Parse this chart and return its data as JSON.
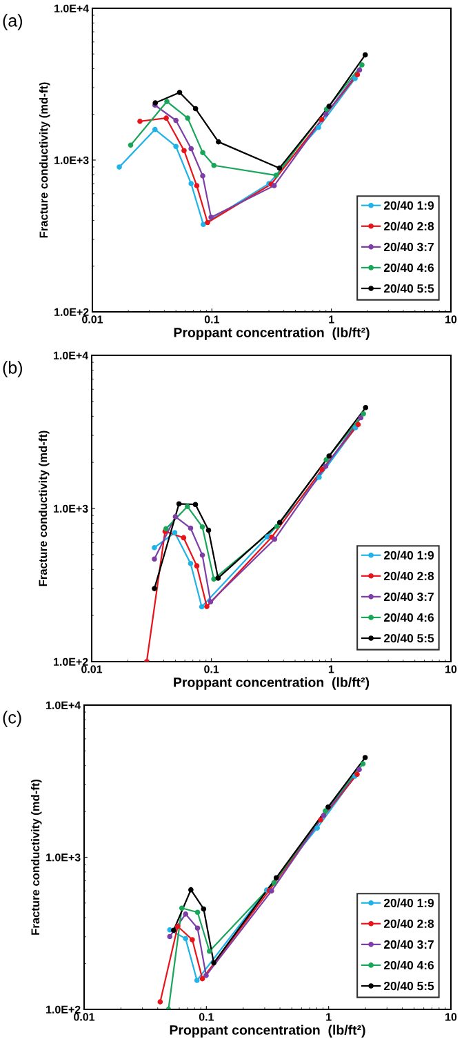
{
  "chart_data": [
    {
      "type": "line",
      "title": "(a)",
      "xlabel": "Proppant concentration  (lb/ft²)",
      "ylabel": "Fracture conductivity (md-ft)",
      "log": "xy",
      "xlim": [
        0.01,
        10
      ],
      "ylim": [
        100,
        10000
      ],
      "xticks": [
        0.01,
        0.1,
        1,
        10
      ],
      "yticks": [
        {
          "value": 100,
          "label": "1.0E+2"
        },
        {
          "value": 1000,
          "label": "1.0E+3"
        },
        {
          "value": 10000,
          "label": "1.0E+4"
        }
      ],
      "legend": "bottom right",
      "marker": "circle",
      "grid": false,
      "series": [
        {
          "name": "20/40 1:9",
          "color": "#1fb3e8",
          "x": [
            0.0168,
            0.0334,
            0.05,
            0.067,
            0.0848,
            0.3,
            0.78,
            1.58
          ],
          "values": [
            900,
            1590,
            1230,
            700,
            377,
            700,
            1640,
            3450
          ]
        },
        {
          "name": "20/40 2:8",
          "color": "#e8141b",
          "x": [
            0.025,
            0.0415,
            0.0585,
            0.0747,
            0.092,
            0.313,
            0.83,
            1.65
          ],
          "values": [
            1800,
            1890,
            1155,
            678,
            388,
            693,
            1850,
            3650
          ]
        },
        {
          "name": "20/40 3:7",
          "color": "#7d3fa6",
          "x": [
            0.0334,
            0.05,
            0.067,
            0.0838,
            0.0984,
            0.332,
            0.9,
            1.72
          ],
          "values": [
            2300,
            1825,
            1188,
            787,
            420,
            678,
            2010,
            3920
          ]
        },
        {
          "name": "20/40 4:6",
          "color": "#1aa65a",
          "x": [
            0.0209,
            0.042,
            0.0627,
            0.0838,
            0.104,
            0.345,
            0.91,
            1.8
          ],
          "values": [
            1254,
            2430,
            1890,
            1120,
            922,
            794,
            2160,
            4240
          ]
        },
        {
          "name": "20/40 5:5",
          "color": "#000000",
          "x": [
            0.0336,
            0.0537,
            0.073,
            0.1135,
            0.368,
            0.955,
            1.92
          ],
          "values": [
            2380,
            2790,
            2180,
            1318,
            885,
            2260,
            4930
          ]
        }
      ]
    },
    {
      "type": "line",
      "title": "(b)",
      "xlabel": "Proppant concentration  (lb/ft²)",
      "ylabel": "Fracture conductivity (md-ft)",
      "log": "xy",
      "xlim": [
        0.01,
        10
      ],
      "ylim": [
        100,
        10000
      ],
      "xticks": [
        0.01,
        0.1,
        1,
        10
      ],
      "yticks": [
        {
          "value": 100,
          "label": "1.0E+2"
        },
        {
          "value": 1000,
          "label": "1.0E+3"
        },
        {
          "value": 10000,
          "label": "1.0E+4"
        }
      ],
      "legend": "bottom right",
      "marker": "circle",
      "grid": false,
      "series": [
        {
          "name": "20/40 1:9",
          "color": "#1fb3e8",
          "x": [
            0.0334,
            0.0494,
            0.067,
            0.083,
            0.293,
            0.794,
            1.6
          ],
          "values": [
            555,
            695,
            437,
            228,
            653,
            1600,
            3370
          ]
        },
        {
          "name": "20/40 2:8",
          "color": "#e8141b",
          "x": [
            0.0288,
            0.041,
            0.0586,
            0.0755,
            0.0915,
            0.319,
            0.84,
            1.68
          ],
          "values": [
            100,
            708,
            644,
            422,
            229,
            650,
            1800,
            3530
          ]
        },
        {
          "name": "20/40 3:7",
          "color": "#7d3fa6",
          "x": [
            0.0334,
            0.05,
            0.067,
            0.084,
            0.0984,
            0.337,
            0.9,
            1.77
          ],
          "values": [
            468,
            884,
            744,
            496,
            246,
            630,
            1885,
            3910
          ]
        },
        {
          "name": "20/40 4:6",
          "color": "#1aa65a",
          "x": [
            0.0418,
            0.063,
            0.084,
            0.1047,
            0.353,
            0.91,
            1.86
          ],
          "values": [
            738,
            1030,
            758,
            346,
            764,
            2080,
            4150
          ]
        },
        {
          "name": "20/40 5:5",
          "color": "#000000",
          "x": [
            0.0334,
            0.0536,
            0.0735,
            0.0946,
            0.1137,
            0.372,
            0.96,
            1.94
          ],
          "values": [
            300,
            1072,
            1062,
            721,
            351,
            811,
            2200,
            4560
          ]
        }
      ]
    },
    {
      "type": "line",
      "title": "(c)",
      "xlabel": "Proppant concentration  (lb/ft²)",
      "ylabel": "Fracture conductivity (md-ft)",
      "log": "xy",
      "xlim": [
        0.01,
        10
      ],
      "ylim": [
        100,
        10000
      ],
      "xticks": [
        0.01,
        0.1,
        1,
        10
      ],
      "yticks": [
        {
          "value": 100,
          "label": "1.0E+2"
        },
        {
          "value": 1000,
          "label": "1.0E+3"
        },
        {
          "value": 10000,
          "label": "1.0E+4"
        }
      ],
      "legend": "bottom right",
      "marker": "circle",
      "grid": false,
      "series": [
        {
          "name": "20/40 1:9",
          "color": "#1fb3e8",
          "x": [
            0.0502,
            0.0676,
            0.0838,
            0.311,
            0.807,
            1.64
          ],
          "values": [
            333,
            292,
            155,
            608,
            1556,
            3410
          ]
        },
        {
          "name": "20/40 2:8",
          "color": "#e8141b",
          "x": [
            0.0419,
            0.0583,
            0.0767,
            0.0927,
            0.327,
            0.86,
            1.71
          ],
          "values": [
            112,
            351,
            287,
            159,
            605,
            1760,
            3510
          ]
        },
        {
          "name": "20/40 3:7",
          "color": "#7d3fa6",
          "x": [
            0.0502,
            0.0676,
            0.0847,
            0.0995,
            0.341,
            0.91,
            1.78
          ],
          "values": [
            301,
            423,
            342,
            167,
            600,
            1883,
            3770
          ]
        },
        {
          "name": "20/40 4:6",
          "color": "#1aa65a",
          "x": [
            0.049,
            0.063,
            0.0847,
            0.106,
            0.357,
            0.94,
            1.91
          ],
          "values": [
            100,
            463,
            435,
            241,
            679,
            2016,
            4110
          ]
        },
        {
          "name": "20/40 5:5",
          "color": "#000000",
          "x": [
            0.054,
            0.0747,
            0.095,
            0.115,
            0.373,
            0.99,
            1.99
          ],
          "values": [
            331,
            611,
            457,
            202,
            733,
            2138,
            4520
          ]
        }
      ]
    }
  ]
}
